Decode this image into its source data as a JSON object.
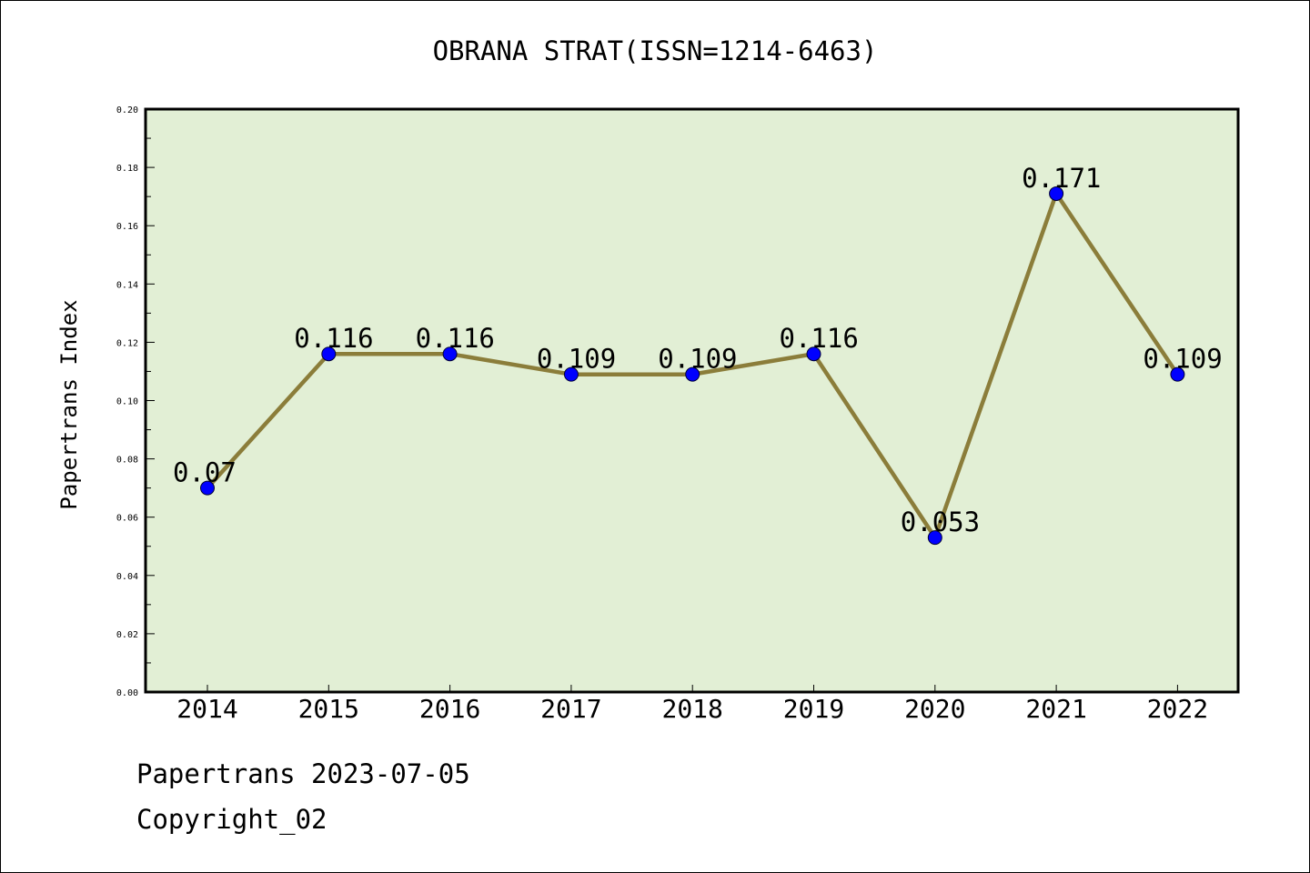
{
  "chart_data": {
    "type": "line",
    "title": "OBRANA STRAT(ISSN=1214-6463)",
    "xlabel": "",
    "ylabel": "Papertrans Index",
    "categories": [
      "2014",
      "2015",
      "2016",
      "2017",
      "2018",
      "2019",
      "2020",
      "2021",
      "2022"
    ],
    "series": [
      {
        "values": [
          0.07,
          0.116,
          0.116,
          0.109,
          0.109,
          0.116,
          0.053,
          0.171,
          0.109
        ]
      }
    ],
    "data_labels": [
      "0.07",
      "0.116",
      "0.116",
      "0.109",
      "0.109",
      "0.116",
      "0.053",
      "0.171",
      "0.109"
    ],
    "ylim": [
      0,
      0.2
    ],
    "yticks": [
      "0.00",
      "0.02",
      "0.04",
      "0.06",
      "0.08",
      "0.10",
      "0.12",
      "0.14",
      "0.16",
      "0.18",
      "0.20"
    ],
    "grid": false,
    "colors": {
      "plot_background": "#e2efd5",
      "line": "#8b7d3a",
      "marker": "#0000ff"
    }
  },
  "footer": {
    "date_line": "Papertrans 2023-07-05",
    "copyright": "Copyright_02"
  }
}
